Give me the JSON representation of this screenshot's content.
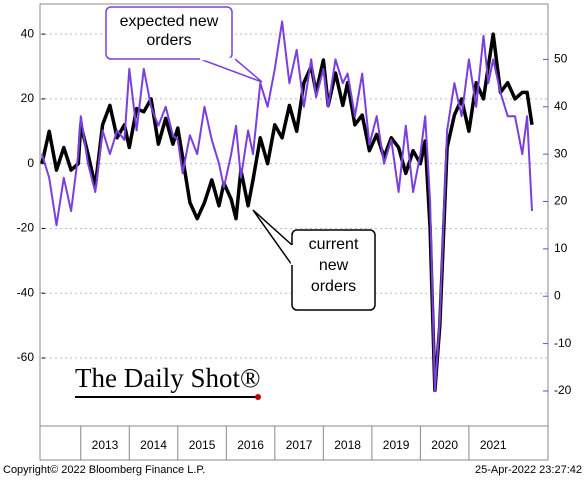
{
  "chart_data": {
    "type": "line",
    "x": [
      2012.2,
      2012.35,
      2012.5,
      2012.65,
      2012.8,
      2012.95,
      2013.0,
      2013.15,
      2013.3,
      2013.45,
      2013.6,
      2013.75,
      2013.9,
      2014.0,
      2014.15,
      2014.3,
      2014.45,
      2014.6,
      2014.75,
      2014.9,
      2015.0,
      2015.1,
      2015.25,
      2015.4,
      2015.55,
      2015.7,
      2015.85,
      2015.95,
      2016.1,
      2016.2,
      2016.3,
      2016.45,
      2016.55,
      2016.7,
      2016.85,
      2017.0,
      2017.15,
      2017.3,
      2017.45,
      2017.6,
      2017.75,
      2017.85,
      2018.0,
      2018.1,
      2018.25,
      2018.4,
      2018.5,
      2018.65,
      2018.8,
      2018.95,
      2019.1,
      2019.25,
      2019.4,
      2019.55,
      2019.7,
      2019.85,
      2020.0,
      2020.1,
      2020.2,
      2020.3,
      2020.4,
      2020.55,
      2020.7,
      2020.85,
      2021.0,
      2021.15,
      2021.3,
      2021.4,
      2021.5,
      2021.65,
      2021.8,
      2021.95,
      2022.1,
      2022.2,
      2022.3
    ],
    "series": [
      {
        "name": "current new orders",
        "color": "#000000",
        "axis": "y",
        "values": [
          0,
          10,
          -2,
          5,
          -2,
          0,
          12,
          3,
          -7,
          12,
          18,
          8,
          12,
          5,
          17,
          16,
          20,
          6,
          14,
          6,
          11,
          2,
          -12,
          -17,
          -12,
          -5,
          -13,
          -6,
          -11,
          -17,
          -2,
          -13,
          -5,
          8,
          0,
          12,
          8,
          18,
          10,
          25,
          30,
          22,
          32,
          18,
          28,
          18,
          25,
          12,
          15,
          4,
          9,
          2,
          8,
          5,
          -3,
          4,
          0,
          7,
          -20,
          -70,
          -50,
          5,
          15,
          20,
          10,
          25,
          20,
          30,
          40,
          22,
          25,
          20,
          22,
          22,
          12
        ]
      },
      {
        "name": "expected new orders",
        "color": "#7b3fe0",
        "axis": "y2",
        "values": [
          30,
          25,
          15,
          25,
          18,
          30,
          38,
          28,
          22,
          35,
          30,
          35,
          33,
          48,
          35,
          48,
          40,
          36,
          40,
          34,
          33,
          26,
          34,
          30,
          40,
          33,
          28,
          23,
          30,
          36,
          25,
          35,
          30,
          45,
          40,
          48,
          58,
          45,
          52,
          40,
          50,
          42,
          48,
          40,
          50,
          45,
          47,
          38,
          47,
          32,
          38,
          28,
          33,
          22,
          36,
          22,
          30,
          38,
          20,
          -20,
          -5,
          35,
          45,
          38,
          50,
          40,
          55,
          45,
          50,
          43,
          38,
          38,
          30,
          38,
          18
        ]
      }
    ],
    "xlim": [
      2012.16,
      2022.63
    ],
    "xticks": [
      {
        "value": 2013.5,
        "label": "2013"
      },
      {
        "value": 2014.5,
        "label": "2014"
      },
      {
        "value": 2015.5,
        "label": "2015"
      },
      {
        "value": 2016.5,
        "label": "2016"
      },
      {
        "value": 2017.5,
        "label": "2017"
      },
      {
        "value": 2018.5,
        "label": "2018"
      },
      {
        "value": 2019.5,
        "label": "2019"
      },
      {
        "value": 2020.5,
        "label": "2020"
      },
      {
        "value": 2021.5,
        "label": "2021"
      }
    ],
    "ylim": [
      -81,
      49.3
    ],
    "yticks": [
      -60,
      -40,
      -20,
      0,
      20,
      40
    ],
    "y2lim": [
      -27.4,
      61.7
    ],
    "y2ticks": [
      -20,
      -10,
      0,
      10,
      20,
      30,
      40,
      50
    ],
    "grid": true,
    "annotations": [
      {
        "lines": [
          "expected new",
          "orders"
        ],
        "color": "#7b3fe0"
      },
      {
        "lines": [
          "current",
          "new",
          "orders"
        ],
        "color": "#000000"
      }
    ],
    "watermark": "The Daily Shot®",
    "source": "Copyright© 2022 Bloomberg Finance L.P.",
    "timestamp": "25-Apr-2022 23:27:42"
  }
}
